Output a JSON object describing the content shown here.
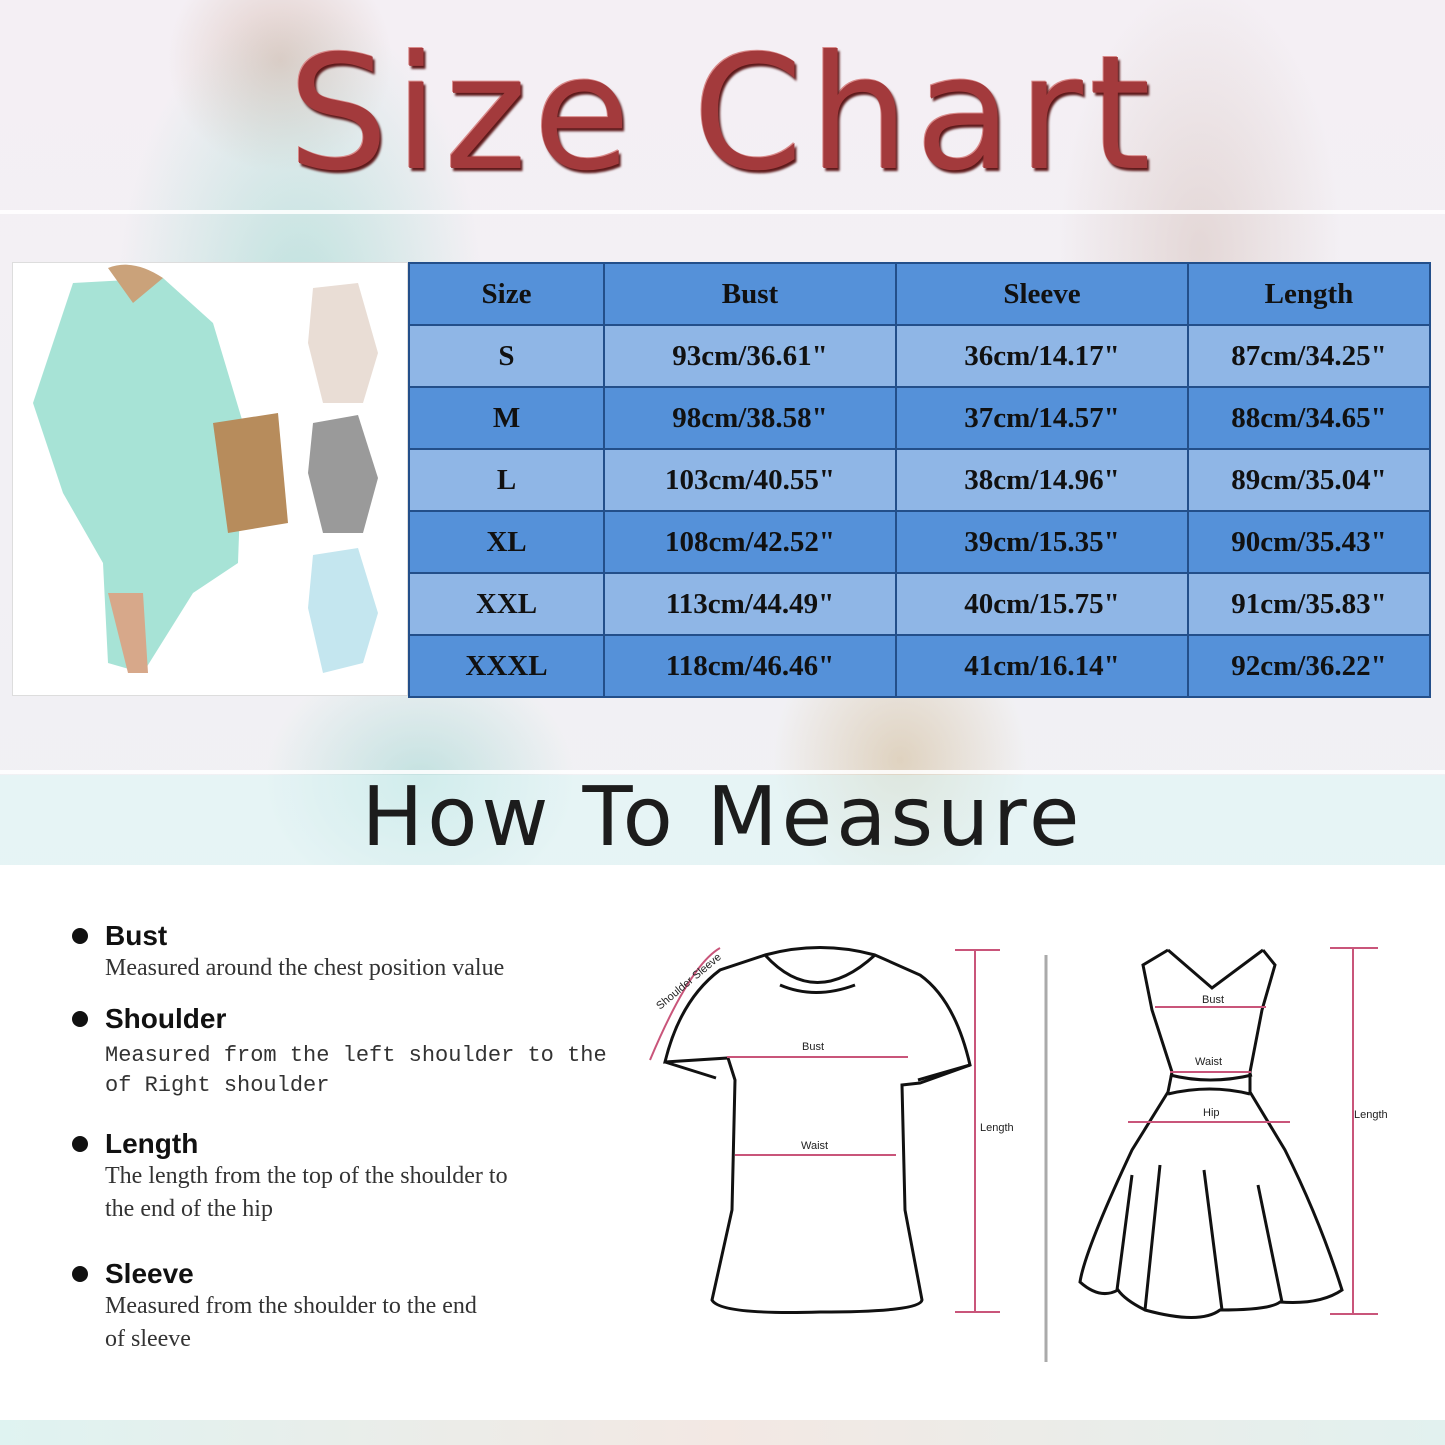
{
  "title": "Size Chart",
  "table": {
    "headers": [
      "Size",
      "Bust",
      "Sleeve",
      "Length"
    ],
    "rows": [
      [
        "S",
        "93cm/36.61\"",
        "36cm/14.17\"",
        "87cm/34.25\""
      ],
      [
        "M",
        "98cm/38.58\"",
        "37cm/14.57\"",
        "88cm/34.65\""
      ],
      [
        "L",
        "103cm/40.55\"",
        "38cm/14.96\"",
        "89cm/35.04\""
      ],
      [
        "XL",
        "108cm/42.52\"",
        "39cm/15.35\"",
        "90cm/35.43\""
      ],
      [
        "XXL",
        "113cm/44.49\"",
        "40cm/15.75\"",
        "91cm/35.83\""
      ],
      [
        "XXXL",
        "118cm/46.46\"",
        "41cm/16.14\"",
        "92cm/36.22\""
      ]
    ]
  },
  "how_to_measure": {
    "title": "How To Measure",
    "items": [
      {
        "name": "Bust",
        "desc": [
          "Measured around the chest position value"
        ]
      },
      {
        "name": "Shoulder",
        "desc": [
          "Measured from the left shoulder to the",
          "of Right shoulder"
        ]
      },
      {
        "name": "Length",
        "desc": [
          "The length from the top of the shoulder to",
          "the end of the hip"
        ]
      },
      {
        "name": "Sleeve",
        "desc": [
          "Measured from the shoulder to the end",
          "of sleeve"
        ]
      }
    ]
  },
  "diagram_labels": {
    "tshirt": {
      "shoulder_sleeve": "Shoulder Sleeve",
      "bust": "Bust",
      "waist": "Waist",
      "length": "Length"
    },
    "dress": {
      "bust": "Bust",
      "waist": "Waist",
      "hip": "Hip",
      "length": "Length"
    }
  },
  "colors": {
    "title": "#a33a3c",
    "header_row": "#5591d9",
    "light_row": "#8fb6e6",
    "grid": "#234f8a",
    "measure_line": "#c9557a"
  }
}
